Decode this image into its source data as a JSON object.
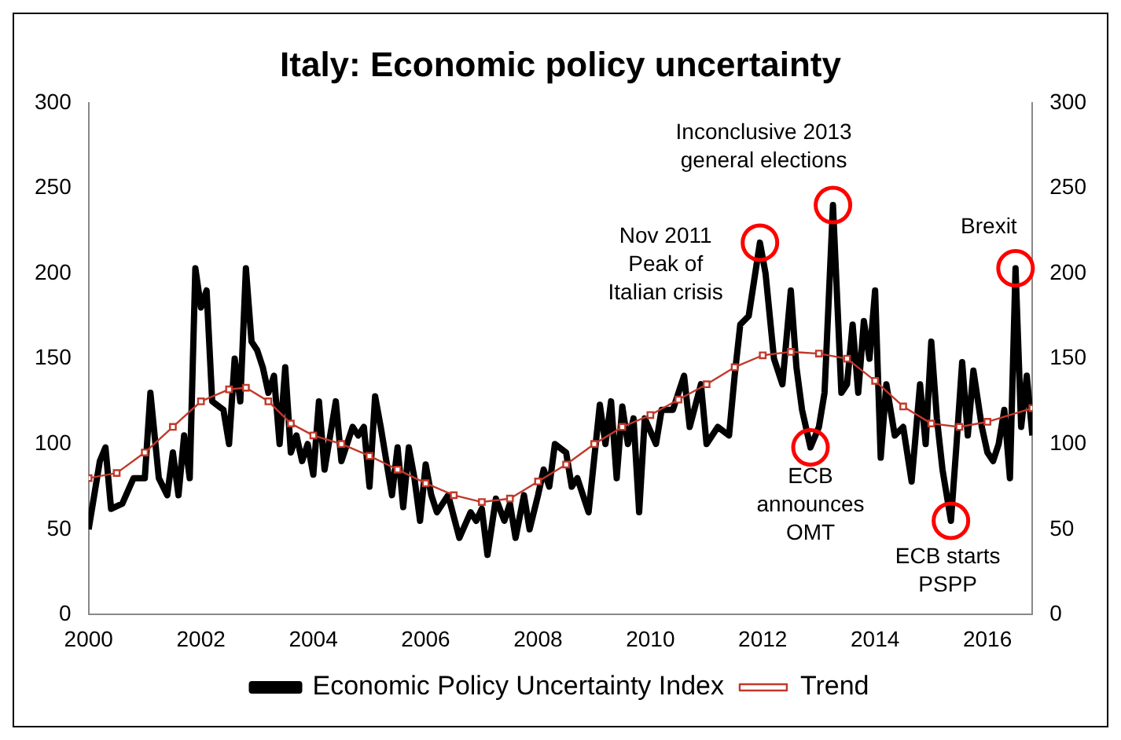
{
  "chart_data": {
    "type": "line",
    "title": "Italy: Economic policy uncertainty",
    "xlim": [
      2000,
      2016.8
    ],
    "xticks": [
      2000,
      2002,
      2004,
      2006,
      2008,
      2010,
      2012,
      2014,
      2016
    ],
    "ylim": [
      0,
      300
    ],
    "yticks": [
      0,
      50,
      100,
      150,
      200,
      250,
      300
    ],
    "y2lim": [
      0,
      300
    ],
    "y2ticks": [
      0,
      50,
      100,
      150,
      200,
      250,
      300
    ],
    "grid": false,
    "legend": "bottom",
    "series": [
      {
        "name": "Economic Policy Uncertainty Index",
        "color": "#000000",
        "marker": "none",
        "line_style": "solid",
        "x": [
          2000.0,
          2000.2,
          2000.3,
          2000.4,
          2000.6,
          2000.8,
          2001.0,
          2001.1,
          2001.25,
          2001.4,
          2001.5,
          2001.6,
          2001.7,
          2001.8,
          2001.9,
          2002.0,
          2002.1,
          2002.2,
          2002.4,
          2002.5,
          2002.6,
          2002.7,
          2002.8,
          2002.9,
          2003.0,
          2003.1,
          2003.2,
          2003.3,
          2003.4,
          2003.5,
          2003.6,
          2003.7,
          2003.8,
          2003.9,
          2004.0,
          2004.1,
          2004.2,
          2004.4,
          2004.5,
          2004.7,
          2004.8,
          2004.9,
          2005.0,
          2005.1,
          2005.2,
          2005.4,
          2005.5,
          2005.6,
          2005.7,
          2005.8,
          2005.9,
          2006.0,
          2006.1,
          2006.2,
          2006.4,
          2006.6,
          2006.8,
          2006.9,
          2007.0,
          2007.1,
          2007.25,
          2007.4,
          2007.5,
          2007.6,
          2007.75,
          2007.85,
          2008.0,
          2008.1,
          2008.2,
          2008.3,
          2008.5,
          2008.6,
          2008.7,
          2008.9,
          2009.1,
          2009.2,
          2009.3,
          2009.4,
          2009.5,
          2009.6,
          2009.7,
          2009.8,
          2009.9,
          2010.1,
          2010.2,
          2010.4,
          2010.6,
          2010.7,
          2010.9,
          2011.0,
          2011.2,
          2011.4,
          2011.5,
          2011.6,
          2011.75,
          2011.95,
          2012.05,
          2012.2,
          2012.35,
          2012.5,
          2012.6,
          2012.7,
          2012.85,
          2013.0,
          2013.1,
          2013.25,
          2013.4,
          2013.5,
          2013.6,
          2013.7,
          2013.8,
          2013.9,
          2014.0,
          2014.1,
          2014.2,
          2014.35,
          2014.5,
          2014.65,
          2014.8,
          2014.9,
          2015.0,
          2015.1,
          2015.2,
          2015.35,
          2015.45,
          2015.55,
          2015.65,
          2015.75,
          2015.9,
          2016.0,
          2016.1,
          2016.2,
          2016.3,
          2016.4,
          2016.5,
          2016.6,
          2016.7,
          2016.8
        ],
        "values": [
          50,
          90,
          98,
          62,
          65,
          80,
          80,
          130,
          80,
          70,
          95,
          70,
          105,
          80,
          203,
          180,
          190,
          125,
          120,
          100,
          150,
          125,
          203,
          160,
          155,
          145,
          130,
          140,
          100,
          145,
          95,
          105,
          90,
          100,
          82,
          125,
          85,
          125,
          90,
          110,
          105,
          110,
          75,
          128,
          110,
          70,
          98,
          63,
          98,
          80,
          55,
          88,
          70,
          60,
          70,
          45,
          60,
          55,
          62,
          35,
          68,
          55,
          65,
          45,
          70,
          50,
          70,
          85,
          75,
          100,
          95,
          75,
          80,
          60,
          123,
          100,
          125,
          80,
          122,
          100,
          115,
          60,
          115,
          100,
          120,
          120,
          140,
          110,
          135,
          100,
          110,
          105,
          140,
          170,
          175,
          218,
          200,
          150,
          135,
          190,
          145,
          120,
          98,
          110,
          130,
          240,
          130,
          135,
          170,
          130,
          172,
          150,
          190,
          92,
          135,
          105,
          110,
          78,
          135,
          100,
          160,
          115,
          85,
          55,
          100,
          148,
          105,
          143,
          110,
          95,
          90,
          100,
          120,
          80,
          203,
          110,
          140,
          105
        ]
      },
      {
        "name": "Trend",
        "color": "#c0392b",
        "marker": "square",
        "line_style": "solid",
        "x": [
          2000,
          2000.5,
          2001,
          2001.5,
          2002,
          2002.5,
          2002.8,
          2003.2,
          2003.6,
          2004,
          2004.5,
          2005,
          2005.5,
          2006,
          2006.5,
          2007,
          2007.5,
          2008,
          2008.5,
          2009,
          2009.5,
          2010,
          2010.5,
          2011,
          2011.5,
          2012,
          2012.5,
          2013,
          2013.5,
          2014,
          2014.5,
          2015,
          2015.5,
          2016,
          2016.8
        ],
        "values": [
          80,
          83,
          95,
          110,
          125,
          132,
          133,
          125,
          112,
          105,
          100,
          93,
          85,
          77,
          70,
          66,
          68,
          78,
          88,
          100,
          110,
          117,
          126,
          135,
          145,
          152,
          154,
          153,
          150,
          137,
          122,
          112,
          110,
          113,
          121
        ]
      }
    ],
    "annotations": [
      {
        "text": "Nov 2011\nPeak of\nItalian crisis",
        "x": 2011.95,
        "y": 218
      },
      {
        "text": "Inconclusive 2013\ngeneral elections",
        "x": 2013.25,
        "y": 240
      },
      {
        "text": "ECB\nannounces\nOMT",
        "x": 2012.85,
        "y": 98
      },
      {
        "text": "ECB starts\nPSPP",
        "x": 2015.35,
        "y": 55
      },
      {
        "text": "Brexit",
        "x": 2016.5,
        "y": 203
      }
    ]
  }
}
